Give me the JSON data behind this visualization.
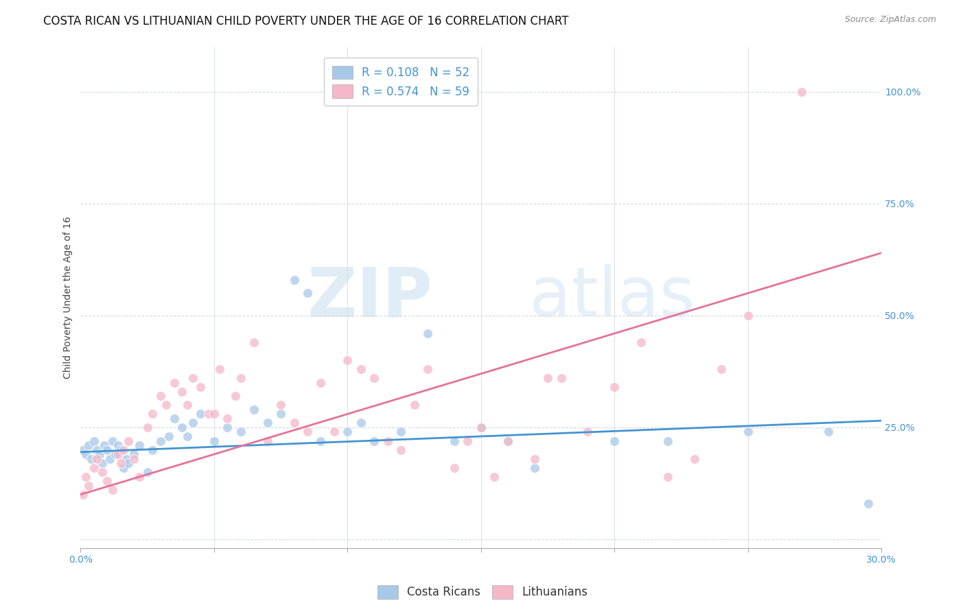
{
  "title": "COSTA RICAN VS LITHUANIAN CHILD POVERTY UNDER THE AGE OF 16 CORRELATION CHART",
  "source": "Source: ZipAtlas.com",
  "ylabel": "Child Poverty Under the Age of 16",
  "xlim": [
    0.0,
    0.3
  ],
  "ylim": [
    -0.02,
    1.1
  ],
  "blue_color": "#a8c8e8",
  "pink_color": "#f4b8c8",
  "blue_line_color": "#4494d0",
  "pink_line_color": "#e8709a",
  "legend_R_blue": "R = 0.108",
  "legend_N_blue": "N = 52",
  "legend_R_pink": "R = 0.574",
  "legend_N_pink": "N = 59",
  "legend_label_blue": "Costa Ricans",
  "legend_label_pink": "Lithuanians",
  "blue_scatter_x": [
    0.001,
    0.002,
    0.003,
    0.004,
    0.005,
    0.006,
    0.007,
    0.008,
    0.009,
    0.01,
    0.011,
    0.012,
    0.013,
    0.014,
    0.015,
    0.016,
    0.017,
    0.018,
    0.02,
    0.022,
    0.025,
    0.027,
    0.03,
    0.033,
    0.035,
    0.038,
    0.04,
    0.042,
    0.045,
    0.05,
    0.055,
    0.06,
    0.065,
    0.07,
    0.075,
    0.08,
    0.085,
    0.09,
    0.1,
    0.105,
    0.11,
    0.12,
    0.13,
    0.14,
    0.15,
    0.16,
    0.17,
    0.2,
    0.22,
    0.25,
    0.28,
    0.295
  ],
  "blue_scatter_y": [
    0.2,
    0.19,
    0.21,
    0.18,
    0.22,
    0.2,
    0.19,
    0.17,
    0.21,
    0.2,
    0.18,
    0.22,
    0.19,
    0.21,
    0.2,
    0.16,
    0.18,
    0.17,
    0.19,
    0.21,
    0.15,
    0.2,
    0.22,
    0.23,
    0.27,
    0.25,
    0.23,
    0.26,
    0.28,
    0.22,
    0.25,
    0.24,
    0.29,
    0.26,
    0.28,
    0.58,
    0.55,
    0.22,
    0.24,
    0.26,
    0.22,
    0.24,
    0.46,
    0.22,
    0.25,
    0.22,
    0.16,
    0.22,
    0.22,
    0.24,
    0.24,
    0.08
  ],
  "pink_scatter_x": [
    0.001,
    0.002,
    0.003,
    0.005,
    0.006,
    0.008,
    0.01,
    0.012,
    0.014,
    0.015,
    0.016,
    0.018,
    0.02,
    0.022,
    0.025,
    0.027,
    0.03,
    0.032,
    0.035,
    0.038,
    0.04,
    0.042,
    0.045,
    0.048,
    0.05,
    0.052,
    0.055,
    0.058,
    0.06,
    0.065,
    0.07,
    0.075,
    0.08,
    0.085,
    0.09,
    0.095,
    0.1,
    0.105,
    0.11,
    0.115,
    0.12,
    0.125,
    0.13,
    0.14,
    0.145,
    0.15,
    0.155,
    0.16,
    0.17,
    0.175,
    0.18,
    0.19,
    0.2,
    0.21,
    0.22,
    0.23,
    0.24,
    0.25,
    0.27
  ],
  "pink_scatter_y": [
    0.1,
    0.14,
    0.12,
    0.16,
    0.18,
    0.15,
    0.13,
    0.11,
    0.19,
    0.17,
    0.2,
    0.22,
    0.18,
    0.14,
    0.25,
    0.28,
    0.32,
    0.3,
    0.35,
    0.33,
    0.3,
    0.36,
    0.34,
    0.28,
    0.28,
    0.38,
    0.27,
    0.32,
    0.36,
    0.44,
    0.22,
    0.3,
    0.26,
    0.24,
    0.35,
    0.24,
    0.4,
    0.38,
    0.36,
    0.22,
    0.2,
    0.3,
    0.38,
    0.16,
    0.22,
    0.25,
    0.14,
    0.22,
    0.18,
    0.36,
    0.36,
    0.24,
    0.34,
    0.44,
    0.14,
    0.18,
    0.38,
    0.5,
    1.0
  ],
  "blue_trend_x": [
    0.0,
    0.3
  ],
  "blue_trend_y": [
    0.195,
    0.265
  ],
  "pink_trend_x": [
    0.0,
    0.3
  ],
  "pink_trend_y": [
    0.1,
    0.64
  ],
  "watermark_zip": "ZIP",
  "watermark_atlas": "atlas",
  "background_color": "#ffffff",
  "grid_color": "#d0d8e0",
  "title_fontsize": 12,
  "axis_label_fontsize": 10,
  "tick_fontsize": 10,
  "legend_fontsize": 12,
  "tick_label_color": "#4494d0"
}
